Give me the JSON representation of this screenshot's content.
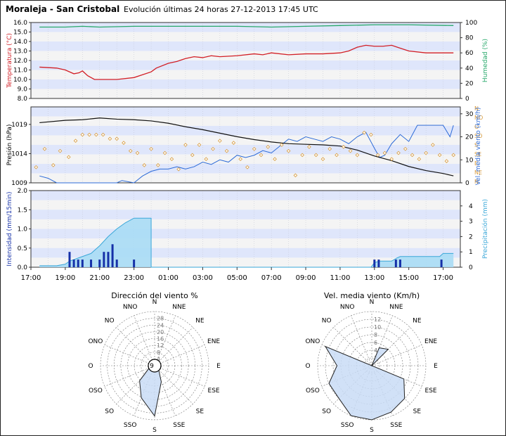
{
  "header": {
    "station": "Moraleja - San Cristobal",
    "title": "Evolución últimas 24 horas 27-12-2013 17:45 UTC"
  },
  "colors": {
    "band": "#dfe6fb",
    "plot_bg": "#f4f4f4",
    "temperature": "#d21f26",
    "humidity": "#27a86a",
    "pressure": "#111111",
    "wind_dir": "#d79a3c",
    "wind_speed": "#2d6bd8",
    "intensity": "#1530a8",
    "precipitation": "#3aa7d8",
    "precip_fill": "#a9dcf5",
    "rose_fill": "#c9dcf6"
  },
  "time_axis": {
    "labels": [
      "17:00",
      "19:00",
      "21:00",
      "23:00",
      "01:00",
      "03:00",
      "05:00",
      "07:00",
      "09:00",
      "11:00",
      "13:00",
      "15:00",
      "17:00"
    ],
    "hours_start": 17,
    "hours_end": 41.75
  },
  "chart_data": [
    {
      "type": "line",
      "name": "temperature_humidity",
      "ylabel_left": "Temperatura (°C)",
      "ylabel_right": "Humedad (%)",
      "ylim_left": [
        8.0,
        16.0
      ],
      "yticks_left": [
        "8.0",
        "9.0",
        "10.0",
        "11.0",
        "12.0",
        "13.0",
        "14.0",
        "15.0",
        "16.0"
      ],
      "ylim_right": [
        0,
        100
      ],
      "yticks_right": [
        "0",
        "20",
        "40",
        "60",
        "80",
        "100"
      ],
      "series": [
        {
          "name": "Temperatura (°C)",
          "axis": "left",
          "x": [
            17.5,
            18.5,
            19.0,
            19.5,
            19.8,
            20.0,
            20.3,
            20.7,
            21.0,
            21.5,
            22.0,
            23.0,
            23.5,
            24.0,
            24.3,
            25.0,
            25.5,
            26.0,
            26.5,
            27.0,
            27.5,
            28.0,
            29.0,
            30.0,
            30.5,
            31.0,
            32.0,
            33.0,
            34.0,
            35.0,
            35.5,
            36.0,
            36.5,
            37.0,
            37.5,
            38.0,
            38.5,
            39.0,
            40.0,
            41.0,
            41.6
          ],
          "y": [
            11.3,
            11.2,
            11.0,
            10.6,
            10.7,
            10.9,
            10.4,
            10.0,
            10.0,
            10.0,
            10.0,
            10.2,
            10.5,
            10.8,
            11.2,
            11.7,
            11.9,
            12.2,
            12.4,
            12.3,
            12.5,
            12.4,
            12.5,
            12.7,
            12.6,
            12.8,
            12.6,
            12.7,
            12.7,
            12.8,
            13.0,
            13.4,
            13.6,
            13.5,
            13.5,
            13.6,
            13.3,
            13.0,
            12.8,
            12.8,
            12.8
          ]
        },
        {
          "name": "Humedad (%)",
          "axis": "right",
          "x": [
            17.5,
            19.0,
            20.0,
            21.0,
            23.0,
            25.0,
            27.0,
            29.0,
            31.0,
            33.0,
            35.0,
            37.0,
            39.0,
            41.6
          ],
          "y": [
            94,
            94,
            95,
            94,
            95,
            95,
            95,
            95,
            94,
            95,
            96,
            97,
            97,
            96
          ]
        }
      ]
    },
    {
      "type": "line",
      "name": "pressure_wind",
      "ylabel_left": "Presión (hPa)",
      "ylabel_right": "Vel. media viento (km/h)",
      "ylim_left": [
        1009,
        1022
      ],
      "yticks_left": [
        "1009",
        "1014",
        "1019"
      ],
      "ylim_right": [
        0,
        33
      ],
      "yticks_right": [
        "0",
        "10",
        "20",
        "30"
      ],
      "dir_labels": [
        "N",
        "NO",
        "O",
        "SO",
        "S",
        "SE",
        "E",
        "NE",
        "N"
      ],
      "series": [
        {
          "name": "Presión (hPa)",
          "axis": "left",
          "x": [
            17.5,
            19.0,
            20.0,
            21.0,
            22.0,
            23.0,
            24.0,
            25.0,
            26.0,
            27.0,
            28.0,
            29.0,
            30.0,
            31.0,
            32.0,
            33.0,
            34.0,
            35.0,
            36.0,
            37.0,
            38.0,
            39.0,
            40.0,
            41.0,
            41.6
          ],
          "y": [
            1019.3,
            1019.7,
            1019.8,
            1020.1,
            1019.9,
            1019.8,
            1019.6,
            1019.2,
            1018.6,
            1018.1,
            1017.5,
            1016.9,
            1016.4,
            1016.0,
            1015.7,
            1015.6,
            1015.5,
            1015.3,
            1014.6,
            1013.6,
            1012.8,
            1011.8,
            1011.1,
            1010.6,
            1010.2
          ]
        },
        {
          "name": "Vel. media viento (km/h)",
          "axis": "right",
          "x": [
            17.5,
            18.0,
            18.5,
            19.0,
            19.5,
            20.0,
            21.0,
            22.0,
            22.3,
            23.0,
            23.5,
            24.0,
            24.5,
            25.0,
            25.5,
            26.0,
            26.5,
            27.0,
            27.5,
            28.0,
            28.5,
            29.0,
            29.5,
            30.0,
            30.5,
            31.0,
            31.5,
            32.0,
            32.5,
            33.0,
            33.5,
            34.0,
            34.5,
            35.0,
            35.5,
            36.0,
            36.5,
            37.0,
            37.3,
            37.6,
            38.0,
            38.5,
            39.0,
            39.5,
            40.0,
            41.0,
            41.4,
            41.6
          ],
          "y": [
            3,
            2,
            0,
            0,
            0,
            0,
            0,
            0,
            1,
            0,
            3,
            5,
            6,
            6,
            7,
            6,
            7,
            9,
            8,
            10,
            9,
            12,
            11,
            12,
            14,
            13,
            16,
            19,
            18,
            20,
            19,
            18,
            20,
            19,
            17,
            20,
            22,
            15,
            11,
            12,
            17,
            21,
            18,
            25,
            25,
            25,
            20,
            25
          ]
        },
        {
          "name": "Dirección del viento",
          "type": "scatter",
          "unit": "deg",
          "axis": "dir",
          "x": [
            17.3,
            17.8,
            18.3,
            18.7,
            19.2,
            19.6,
            20.0,
            20.4,
            20.8,
            21.2,
            21.6,
            22.0,
            22.4,
            22.8,
            23.2,
            23.6,
            24.0,
            24.4,
            24.8,
            25.2,
            25.6,
            26.0,
            26.4,
            26.8,
            27.2,
            27.6,
            28.0,
            28.4,
            28.8,
            29.2,
            29.6,
            30.0,
            30.4,
            30.8,
            31.2,
            31.6,
            32.0,
            32.4,
            32.8,
            33.2,
            33.6,
            34.0,
            34.4,
            34.8,
            35.2,
            35.6,
            36.0,
            36.4,
            36.8,
            37.2,
            37.6,
            38.0,
            38.4,
            38.8,
            39.2,
            39.6,
            40.0,
            40.4,
            40.8,
            41.2,
            41.6
          ],
          "y": [
            290,
            200,
            280,
            210,
            240,
            160,
            130,
            130,
            130,
            130,
            150,
            150,
            170,
            210,
            220,
            280,
            200,
            280,
            220,
            250,
            300,
            180,
            230,
            180,
            250,
            200,
            160,
            210,
            170,
            250,
            290,
            200,
            230,
            190,
            250,
            180,
            210,
            330,
            230,
            190,
            230,
            250,
            200,
            230,
            190,
            210,
            230,
            120,
            130,
            230,
            220,
            250,
            220,
            200,
            230,
            250,
            220,
            180,
            230,
            260,
            230
          ]
        }
      ]
    },
    {
      "type": "bar",
      "name": "precipitation",
      "ylabel_left": "Intensidad (mm/15min)",
      "ylabel_right": "Precipitación (mm)",
      "ylim_left": [
        0,
        2.0
      ],
      "yticks_left": [
        "0.0",
        "0.5",
        "1.0",
        "1.5",
        "2.0"
      ],
      "ylim_right": [
        0,
        5
      ],
      "yticks_right": [
        "0",
        "1",
        "2",
        "3",
        "4"
      ],
      "series": [
        {
          "name": "Intensidad (mm/15min)",
          "type": "bar",
          "x": [
            19.25,
            19.5,
            19.75,
            20.0,
            20.5,
            21.0,
            21.25,
            21.5,
            21.75,
            22.0,
            23.0,
            37.0,
            37.25,
            38.25,
            38.5,
            40.9
          ],
          "y": [
            0.4,
            0.2,
            0.2,
            0.2,
            0.2,
            0.2,
            0.4,
            0.4,
            0.6,
            0.2,
            0.2,
            0.2,
            0.2,
            0.2,
            0.2,
            0.2
          ]
        },
        {
          "name": "Precipitación (mm)",
          "type": "area",
          "x": [
            17.5,
            18.5,
            19.0,
            19.25,
            19.5,
            20.0,
            20.5,
            21.0,
            21.5,
            22.0,
            22.5,
            23.0,
            23.6,
            24.0,
            24.0,
            36.8,
            37.0,
            37.3,
            38.0,
            38.3,
            38.5,
            39.0,
            40.0,
            40.8,
            41.0,
            41.6
          ],
          "y": [
            0.1,
            0.1,
            0.2,
            0.4,
            0.5,
            0.7,
            0.9,
            1.4,
            2.0,
            2.5,
            2.9,
            3.2,
            3.2,
            3.2,
            0.0,
            0.0,
            0.3,
            0.4,
            0.4,
            0.6,
            0.7,
            0.7,
            0.7,
            0.7,
            0.9,
            0.9
          ]
        }
      ]
    },
    {
      "type": "radar",
      "name": "wind_direction_rose",
      "title": "Dirección del viento %",
      "directions": [
        "N",
        "NNE",
        "NE",
        "ENE",
        "E",
        "ESE",
        "SE",
        "SSE",
        "S",
        "SSO",
        "SO",
        "OSO",
        "O",
        "ONO",
        "NO",
        "NNO"
      ],
      "ring_labels": [
        "4",
        "8",
        "12",
        "16",
        "20",
        "24",
        "28"
      ],
      "rmax": 28,
      "center_label": "9",
      "values": [
        0,
        0,
        0,
        0,
        2,
        2,
        3,
        9,
        26,
        18,
        11,
        3,
        1,
        0,
        0,
        0
      ]
    },
    {
      "type": "radar",
      "name": "wind_speed_rose",
      "title": "Vel. media viento (Km/h)",
      "directions": [
        "N",
        "NNE",
        "NE",
        "ENE",
        "E",
        "ESE",
        "SE",
        "SSE",
        "S",
        "SSO",
        "SO",
        "OSO",
        "O",
        "ONO",
        "NO",
        "NNO"
      ],
      "ring_labels": [
        "2",
        "4",
        "6",
        "8",
        "10",
        "12"
      ],
      "rmax": 14,
      "values": [
        0,
        5,
        6,
        0,
        0,
        9,
        12,
        13,
        14,
        14,
        12,
        12,
        9,
        13,
        0,
        0
      ]
    }
  ]
}
